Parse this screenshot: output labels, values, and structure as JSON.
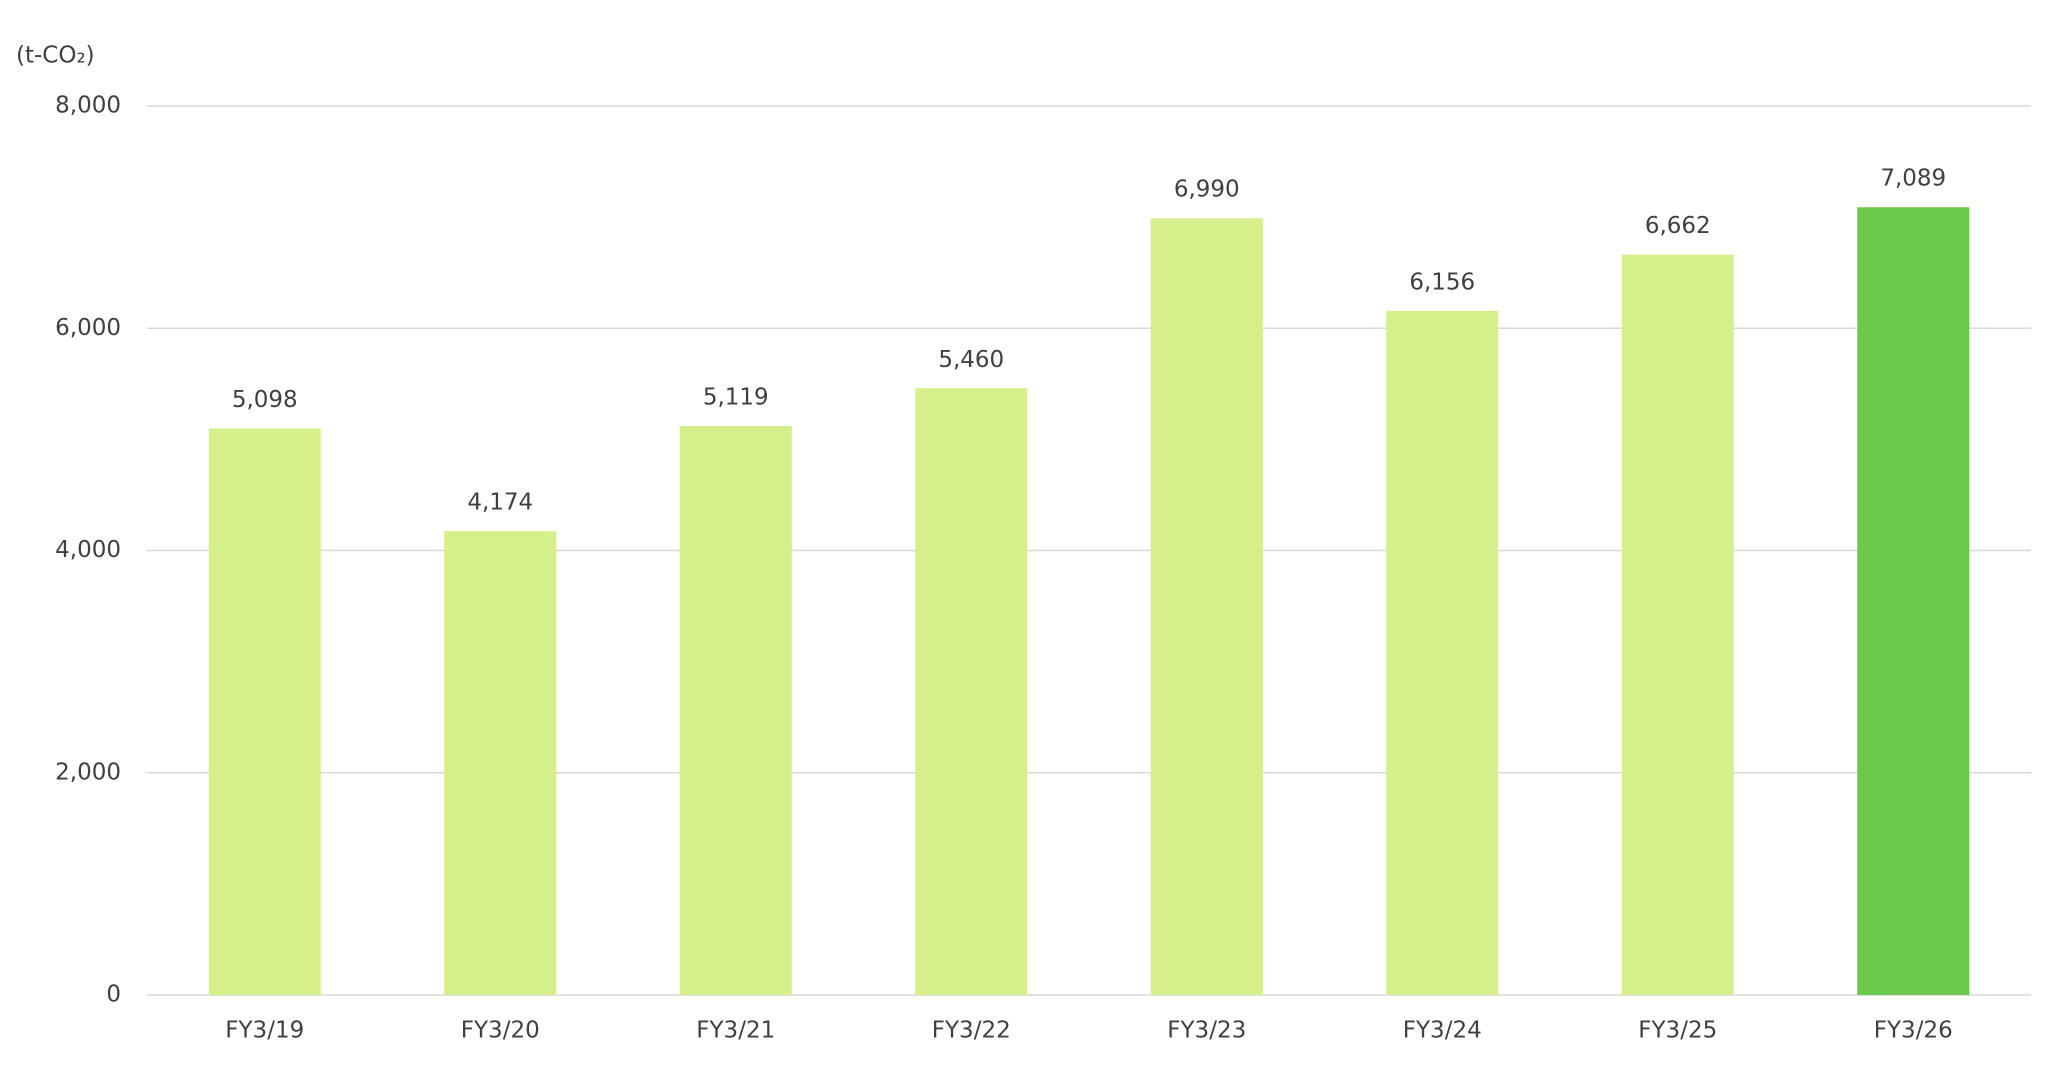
{
  "chart_data": {
    "type": "bar",
    "y_label": "(t-CO₂)",
    "categories": [
      "FY3/19",
      "FY3/20",
      "FY3/21",
      "FY3/22",
      "FY3/23",
      "FY3/24",
      "FY3/25",
      "FY3/26"
    ],
    "values": [
      5098,
      4174,
      5119,
      5460,
      6990,
      6156,
      6662,
      7089
    ],
    "value_labels": [
      "5,098",
      "4,174",
      "5,119",
      "5,460",
      "6,990",
      "6,156",
      "6,662",
      "7,089"
    ],
    "colors": [
      "#d5f08b",
      "#d5f08b",
      "#d5f08b",
      "#d5f08b",
      "#d5f08b",
      "#d5f08b",
      "#d5f08b",
      "#6ac94b"
    ],
    "ylim": [
      0,
      8000
    ],
    "yticks": [
      0,
      {
        "value": 2000,
        "label": "2,000"
      },
      {
        "value": 4000,
        "label": "4,000"
      },
      {
        "value": 6000,
        "label": "6,000"
      },
      {
        "value": 8000,
        "label": "8,000"
      }
    ],
    "grid": true
  }
}
